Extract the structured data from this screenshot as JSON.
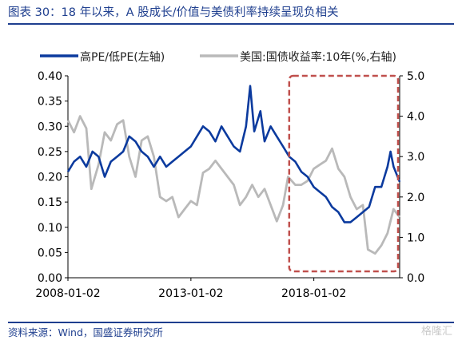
{
  "header": {
    "title": "图表 30：18 年以来，A 股成长/价值与美债利率持续呈现负相关"
  },
  "footer": {
    "source": "资料来源：Wind，国盛证券研究所",
    "watermark": "格隆汇"
  },
  "colors": {
    "title": "#1f3f8f",
    "series_pe": "#0b3a9e",
    "series_yield": "#b9b9b9",
    "highlight_box": "#c0504d"
  },
  "chart_data": {
    "type": "line",
    "title": "",
    "x_ticks": [
      "2008-01-02",
      "2013-01-02",
      "2018-01-02"
    ],
    "x_range": [
      "2008-01-02",
      "2021-06-30"
    ],
    "y_left": {
      "ylim": [
        0,
        0.4
      ],
      "ticks": [
        "0.00",
        "0.05",
        "0.10",
        "0.15",
        "0.20",
        "0.25",
        "0.30",
        "0.35",
        "0.40"
      ]
    },
    "y_right": {
      "ylim": [
        0,
        5
      ],
      "ticks": [
        "0.0",
        "1.0",
        "2.0",
        "3.0",
        "4.0",
        "5.0"
      ]
    },
    "legend_placement": "top",
    "highlight": {
      "from": "2017-01-01",
      "to": "2021-06-30",
      "style": "dashed box"
    },
    "series": [
      {
        "name": "高PE/低PE(左轴)",
        "axis": "left",
        "color": "#0b3a9e",
        "points": [
          [
            "2008-01-02",
            0.21
          ],
          [
            "2008-04-01",
            0.23
          ],
          [
            "2008-07-01",
            0.24
          ],
          [
            "2008-10-01",
            0.22
          ],
          [
            "2009-01-01",
            0.25
          ],
          [
            "2009-04-01",
            0.24
          ],
          [
            "2009-07-01",
            0.2
          ],
          [
            "2009-10-01",
            0.23
          ],
          [
            "2010-01-01",
            0.24
          ],
          [
            "2010-04-01",
            0.25
          ],
          [
            "2010-07-01",
            0.28
          ],
          [
            "2010-10-01",
            0.27
          ],
          [
            "2011-01-01",
            0.25
          ],
          [
            "2011-04-01",
            0.24
          ],
          [
            "2011-07-01",
            0.22
          ],
          [
            "2011-10-01",
            0.24
          ],
          [
            "2012-01-01",
            0.22
          ],
          [
            "2012-04-01",
            0.23
          ],
          [
            "2012-07-01",
            0.24
          ],
          [
            "2012-10-01",
            0.25
          ],
          [
            "2013-01-01",
            0.26
          ],
          [
            "2013-04-01",
            0.28
          ],
          [
            "2013-07-01",
            0.3
          ],
          [
            "2013-10-01",
            0.29
          ],
          [
            "2014-01-01",
            0.27
          ],
          [
            "2014-04-01",
            0.3
          ],
          [
            "2014-07-01",
            0.28
          ],
          [
            "2014-10-01",
            0.26
          ],
          [
            "2015-01-01",
            0.25
          ],
          [
            "2015-04-01",
            0.3
          ],
          [
            "2015-06-01",
            0.38
          ],
          [
            "2015-08-01",
            0.29
          ],
          [
            "2015-11-01",
            0.33
          ],
          [
            "2016-01-01",
            0.27
          ],
          [
            "2016-04-01",
            0.3
          ],
          [
            "2016-07-01",
            0.28
          ],
          [
            "2016-10-01",
            0.26
          ],
          [
            "2017-01-01",
            0.24
          ],
          [
            "2017-04-01",
            0.23
          ],
          [
            "2017-07-01",
            0.21
          ],
          [
            "2017-10-01",
            0.2
          ],
          [
            "2018-01-01",
            0.18
          ],
          [
            "2018-04-01",
            0.17
          ],
          [
            "2018-07-01",
            0.16
          ],
          [
            "2018-10-01",
            0.14
          ],
          [
            "2019-01-01",
            0.13
          ],
          [
            "2019-04-01",
            0.11
          ],
          [
            "2019-07-01",
            0.11
          ],
          [
            "2019-10-01",
            0.12
          ],
          [
            "2020-01-01",
            0.13
          ],
          [
            "2020-04-01",
            0.14
          ],
          [
            "2020-07-01",
            0.18
          ],
          [
            "2020-10-01",
            0.18
          ],
          [
            "2021-01-01",
            0.22
          ],
          [
            "2021-02-15",
            0.25
          ],
          [
            "2021-04-01",
            0.22
          ],
          [
            "2021-06-30",
            0.19
          ]
        ]
      },
      {
        "name": "美国:国债收益率:10年(%,右轴)",
        "axis": "right",
        "color": "#b9b9b9",
        "points": [
          [
            "2008-01-02",
            3.9
          ],
          [
            "2008-04-01",
            3.6
          ],
          [
            "2008-07-01",
            4.0
          ],
          [
            "2008-10-01",
            3.7
          ],
          [
            "2008-12-15",
            2.2
          ],
          [
            "2009-04-01",
            2.8
          ],
          [
            "2009-07-01",
            3.6
          ],
          [
            "2009-10-01",
            3.4
          ],
          [
            "2010-01-01",
            3.8
          ],
          [
            "2010-04-01",
            3.9
          ],
          [
            "2010-07-01",
            3.0
          ],
          [
            "2010-10-01",
            2.5
          ],
          [
            "2011-01-01",
            3.4
          ],
          [
            "2011-04-01",
            3.5
          ],
          [
            "2011-07-01",
            3.0
          ],
          [
            "2011-10-01",
            2.0
          ],
          [
            "2012-01-01",
            1.9
          ],
          [
            "2012-04-01",
            2.0
          ],
          [
            "2012-07-01",
            1.5
          ],
          [
            "2012-10-01",
            1.7
          ],
          [
            "2013-01-01",
            1.9
          ],
          [
            "2013-04-01",
            1.8
          ],
          [
            "2013-07-01",
            2.6
          ],
          [
            "2013-10-01",
            2.7
          ],
          [
            "2014-01-01",
            2.9
          ],
          [
            "2014-04-01",
            2.7
          ],
          [
            "2014-07-01",
            2.5
          ],
          [
            "2014-10-01",
            2.3
          ],
          [
            "2015-01-01",
            1.8
          ],
          [
            "2015-04-01",
            2.0
          ],
          [
            "2015-07-01",
            2.3
          ],
          [
            "2015-10-01",
            2.0
          ],
          [
            "2016-01-01",
            2.2
          ],
          [
            "2016-04-01",
            1.8
          ],
          [
            "2016-07-01",
            1.4
          ],
          [
            "2016-10-01",
            1.8
          ],
          [
            "2016-12-15",
            2.5
          ],
          [
            "2017-04-01",
            2.3
          ],
          [
            "2017-07-01",
            2.3
          ],
          [
            "2017-10-01",
            2.4
          ],
          [
            "2018-01-01",
            2.7
          ],
          [
            "2018-04-01",
            2.8
          ],
          [
            "2018-07-01",
            2.9
          ],
          [
            "2018-10-01",
            3.2
          ],
          [
            "2019-01-01",
            2.7
          ],
          [
            "2019-04-01",
            2.5
          ],
          [
            "2019-07-01",
            2.0
          ],
          [
            "2019-10-01",
            1.7
          ],
          [
            "2020-01-01",
            1.8
          ],
          [
            "2020-03-15",
            0.7
          ],
          [
            "2020-07-01",
            0.6
          ],
          [
            "2020-10-01",
            0.8
          ],
          [
            "2021-01-01",
            1.1
          ],
          [
            "2021-03-31",
            1.7
          ],
          [
            "2021-06-30",
            1.5
          ]
        ]
      }
    ]
  }
}
